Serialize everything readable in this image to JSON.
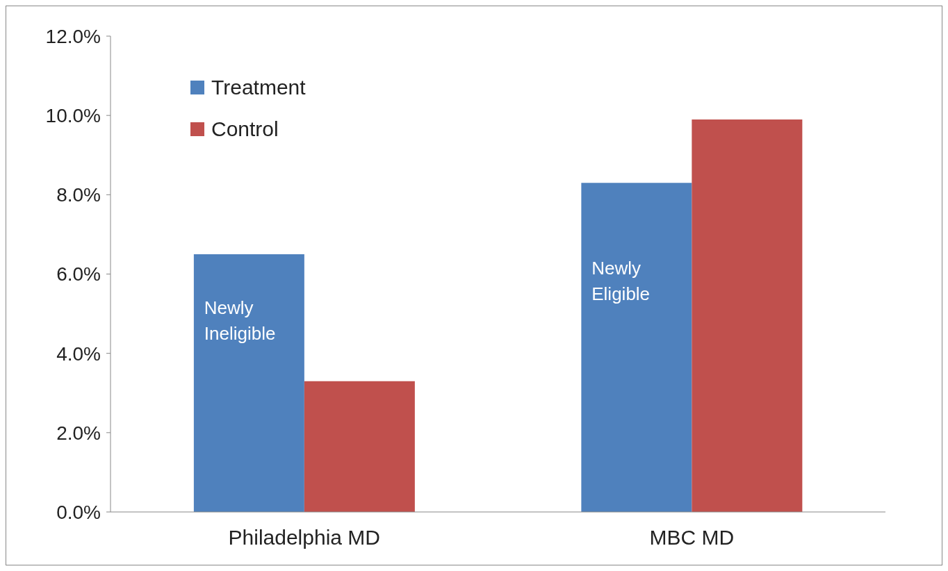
{
  "chart_data": {
    "type": "bar",
    "categories": [
      "Philadelphia MD",
      "MBC MD"
    ],
    "series": [
      {
        "name": "Treatment",
        "color": "#4f81bd",
        "values": [
          6.5,
          8.3
        ]
      },
      {
        "name": "Control",
        "color": "#c0504d",
        "values": [
          3.3,
          9.9
        ]
      }
    ],
    "ylim": [
      0,
      12
    ],
    "yticks": [
      {
        "value": 0,
        "label": "0.0%"
      },
      {
        "value": 2,
        "label": "2.0%"
      },
      {
        "value": 4,
        "label": "4.0%"
      },
      {
        "value": 6,
        "label": "6.0%"
      },
      {
        "value": 8,
        "label": "8.0%"
      },
      {
        "value": 10,
        "label": "10.0%"
      },
      {
        "value": 12,
        "label": "12.0%"
      }
    ],
    "annotations": [
      {
        "text": "Newly Ineligible",
        "x": "Philadelphia MD",
        "y": 5
      },
      {
        "text": "Newly Eligible",
        "x": "MBC MD",
        "y": 6
      }
    ],
    "grid": false,
    "legend": "top left"
  }
}
